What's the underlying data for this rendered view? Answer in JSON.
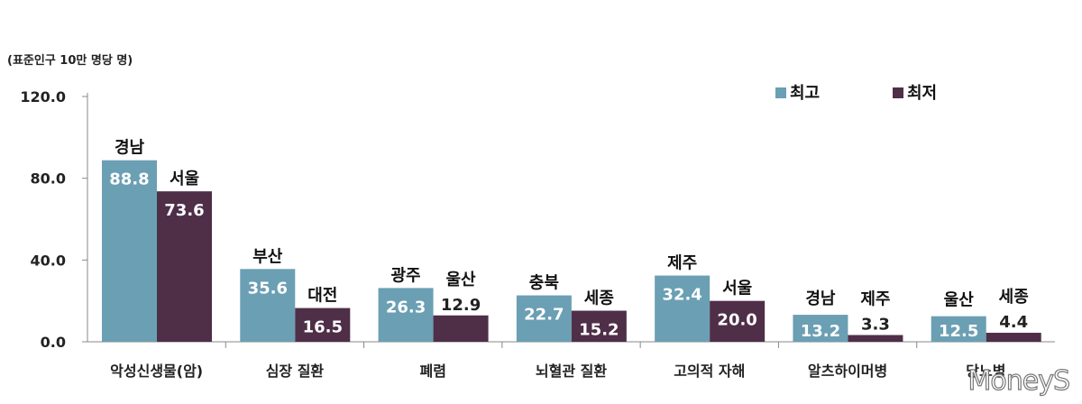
{
  "unit_label": "(표준인구 10만 명당 명)",
  "watermark": "MoneyS",
  "colors": {
    "highest": "#6b9fb4",
    "lowest": "#4f2e48"
  },
  "chart_data": {
    "type": "bar",
    "title": "",
    "xlabel": "",
    "ylabel": "(표준인구 10만 명당 명)",
    "ylim": [
      0,
      120
    ],
    "yticks": [
      "0.0",
      "40.0",
      "80.0",
      "120.0"
    ],
    "legend_position": "top-right",
    "categories": [
      "악성신생물(암)",
      "심장 질환",
      "폐렴",
      "뇌혈관 질환",
      "고의적 자해",
      "알츠하이머병",
      "당뇨병"
    ],
    "series": [
      {
        "name": "최고",
        "values": [
          88.8,
          35.6,
          26.3,
          22.7,
          32.4,
          13.2,
          12.5
        ],
        "value_labels": [
          "88.8",
          "35.6",
          "26.3",
          "22.7",
          "32.4",
          "13.2",
          "12.5"
        ],
        "regions": [
          "경남",
          "부산",
          "광주",
          "충북",
          "제주",
          "경남",
          "울산"
        ]
      },
      {
        "name": "최저",
        "values": [
          73.6,
          16.5,
          12.9,
          15.2,
          20.0,
          3.3,
          4.4
        ],
        "value_labels": [
          "73.6",
          "16.5",
          "12.9",
          "15.2",
          "20.0",
          "3.3",
          "4.4"
        ],
        "regions": [
          "서울",
          "대전",
          "울산",
          "세종",
          "서울",
          "제주",
          "세종"
        ]
      }
    ]
  }
}
